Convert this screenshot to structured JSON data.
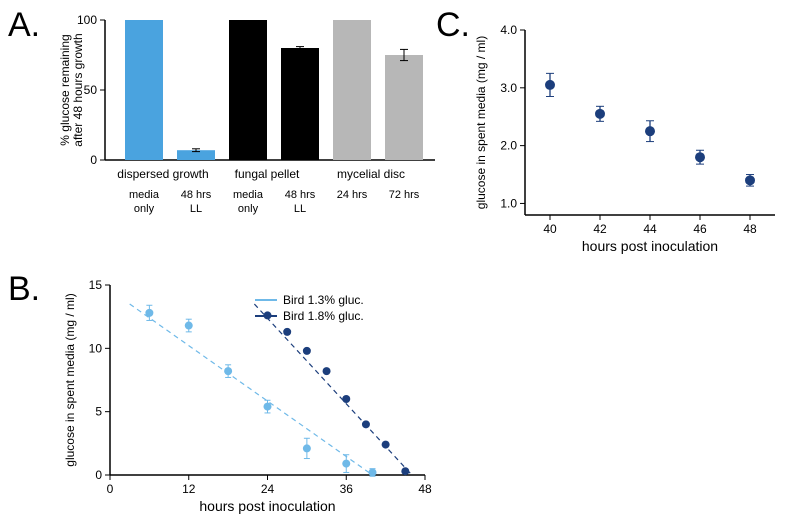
{
  "panel_labels": {
    "A": "A.",
    "B": "B.",
    "C": "C."
  },
  "colors": {
    "bar_blue": "#4aa3df",
    "bar_black": "#000000",
    "bar_gray": "#b7b7b7",
    "axis": "#000000",
    "grid": "#e0e0e0",
    "bg": "#ffffff",
    "light_blue": "#6fb9e8",
    "dark_blue": "#1c3e7c",
    "scatter_blue": "#1c3e7c"
  },
  "chartA": {
    "type": "bar",
    "ylabel_l1": "% glucose remaining",
    "ylabel_l2": "after 48 hours growth",
    "ylim": [
      0,
      100
    ],
    "ytick_step": 50,
    "yticks": [
      0,
      50,
      100
    ],
    "group_labels": [
      "dispersed growth",
      "fungal pellet",
      "mycelial disc"
    ],
    "bar_labels_l1": [
      "media",
      "48 hrs",
      "media",
      "48 hrs",
      "24 hrs",
      "72 hrs"
    ],
    "bar_labels_l2": [
      "only",
      "LL",
      "only",
      "LL",
      "",
      ""
    ],
    "values": [
      100,
      7,
      100,
      80,
      100,
      75
    ],
    "errors": [
      0,
      1,
      0,
      1,
      0,
      4
    ],
    "bar_colors": [
      "#4aa3df",
      "#4aa3df",
      "#000000",
      "#000000",
      "#b7b7b7",
      "#b7b7b7"
    ],
    "bar_width": 0.72,
    "label_fontsize": 12
  },
  "chartB": {
    "type": "scatter",
    "xlabel": "hours post inoculation",
    "ylabel": "glucose in spent media (mg / ml)",
    "xlim": [
      0,
      48
    ],
    "ylim": [
      0,
      15
    ],
    "xticks": [
      0,
      12,
      24,
      36,
      48
    ],
    "yticks": [
      0,
      5,
      10,
      15
    ],
    "legend": {
      "s1": "Bird 1.3% gluc.",
      "s2": "Bird 1.8% gluc."
    },
    "s1_color": "#6fb9e8",
    "s2_color": "#1c3e7c",
    "s1": {
      "x": [
        6,
        12,
        18,
        24,
        30,
        36,
        40
      ],
      "y": [
        12.8,
        11.8,
        8.2,
        5.4,
        2.1,
        0.9,
        0.2
      ],
      "err": [
        0.6,
        0.5,
        0.5,
        0.5,
        0.8,
        0.7,
        0.3
      ]
    },
    "s1_line": {
      "x0": 3,
      "y0": 13.5,
      "x1": 40,
      "y1": 0
    },
    "s2": {
      "x": [
        24,
        27,
        30,
        33,
        36,
        39,
        42,
        45
      ],
      "y": [
        12.6,
        11.3,
        9.8,
        8.2,
        6.0,
        4.0,
        2.4,
        0.3
      ],
      "err": [
        0,
        0,
        0,
        0,
        0,
        0,
        0,
        0
      ]
    },
    "s2_line": {
      "x0": 22,
      "y0": 13.5,
      "x1": 46,
      "y1": 0
    },
    "marker_r": 4,
    "line_width": 1.2,
    "dash": "5,4"
  },
  "chartC": {
    "type": "scatter",
    "xlabel": "hours post inoculation",
    "ylabel": "glucose in spent media (mg / ml)",
    "xlim": [
      39,
      49
    ],
    "ylim": [
      0.8,
      4.0
    ],
    "xticks": [
      40,
      42,
      44,
      46,
      48
    ],
    "yticks": [
      1.0,
      2.0,
      3.0,
      4.0
    ],
    "color": "#1c3e7c",
    "x": [
      40,
      42,
      44,
      46,
      48
    ],
    "y": [
      3.05,
      2.55,
      2.25,
      1.8,
      1.4
    ],
    "err": [
      0.2,
      0.13,
      0.18,
      0.12,
      0.1
    ],
    "marker_r": 5
  }
}
